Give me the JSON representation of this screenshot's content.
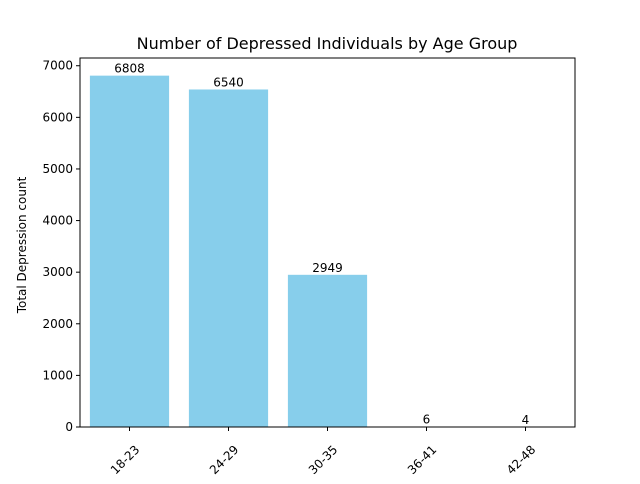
{
  "chart_data": {
    "type": "bar",
    "title": "Number of Depressed Individuals by Age Group",
    "xlabel": "",
    "ylabel": "Total Depression count",
    "categories": [
      "18-23",
      "24-29",
      "30-35",
      "36-41",
      "42-48"
    ],
    "values": [
      6808,
      6540,
      2949,
      6,
      4
    ],
    "data_labels": [
      "6808",
      "6540",
      "2949",
      "6",
      "4"
    ],
    "ylim": [
      0,
      7150
    ],
    "yticks": [
      0,
      1000,
      2000,
      3000,
      4000,
      5000,
      6000,
      7000
    ],
    "ytick_labels": [
      "0",
      "1000",
      "2000",
      "3000",
      "4000",
      "5000",
      "6000",
      "7000"
    ],
    "xtick_rotation_deg": 45,
    "grid": false,
    "legend": "none",
    "bar_color": "#87CEEB"
  }
}
